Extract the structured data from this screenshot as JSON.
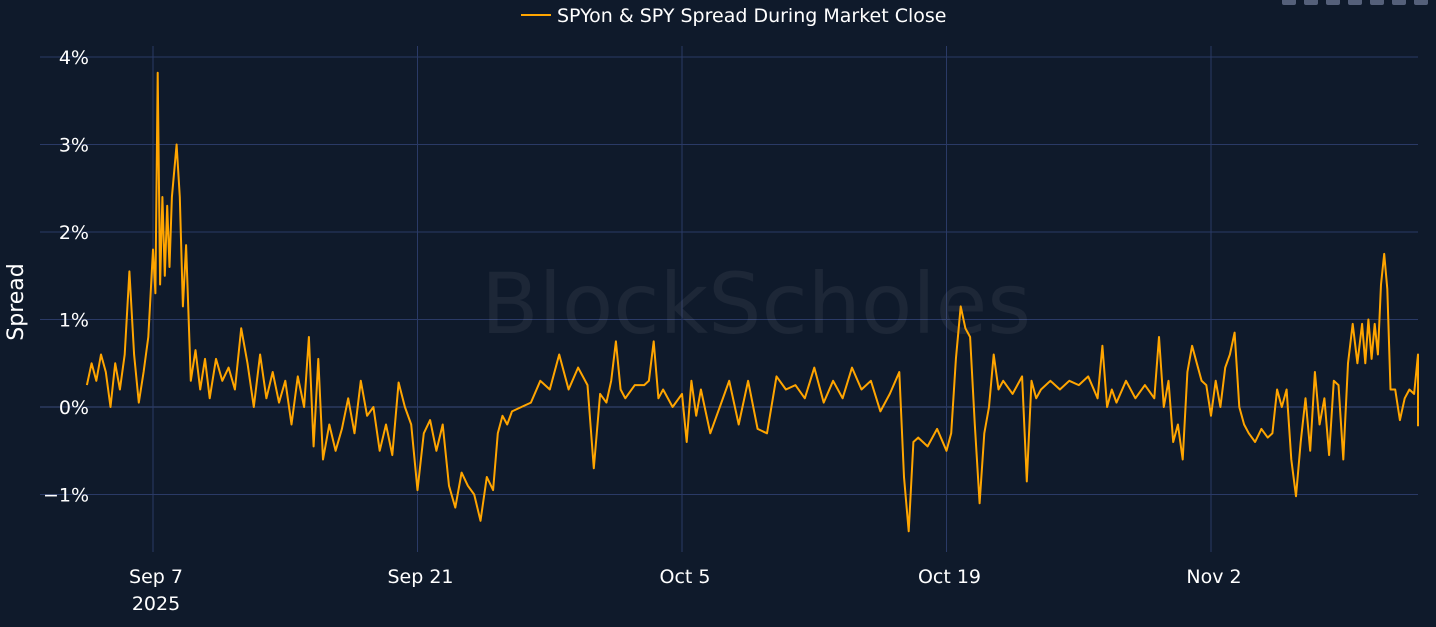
{
  "chart_data": {
    "type": "line",
    "title": "",
    "xlabel": "",
    "ylabel": "Spread",
    "ylim": [
      -1.75,
      4.1
    ],
    "xlim": [
      "2025-09-04",
      "2025-11-12"
    ],
    "y_ticks": [
      {
        "value": 4,
        "label": "4%"
      },
      {
        "value": 3,
        "label": "3%"
      },
      {
        "value": 2,
        "label": "2%"
      },
      {
        "value": 1,
        "label": "1%"
      },
      {
        "value": 0,
        "label": "0%"
      },
      {
        "value": -1,
        "label": "−1%"
      }
    ],
    "x_ticks": [
      {
        "value": "2025-09-07",
        "label": "Sep 7",
        "sublabel": "2025"
      },
      {
        "value": "2025-09-21",
        "label": "Sep 21",
        "sublabel": ""
      },
      {
        "value": "2025-10-05",
        "label": "Oct 5",
        "sublabel": ""
      },
      {
        "value": "2025-10-19",
        "label": "Oct 19",
        "sublabel": ""
      },
      {
        "value": "2025-11-02",
        "label": "Nov 2",
        "sublabel": ""
      }
    ],
    "grid": true,
    "legend": "top-center",
    "series": [
      {
        "name": "SPYon & SPY Spread During Market Close",
        "color": "#ffa500",
        "points": [
          [
            "2025-09-03 12:00",
            0.25
          ],
          [
            "2025-09-03 18:00",
            0.5
          ],
          [
            "2025-09-04 00:00",
            0.3
          ],
          [
            "2025-09-04 06:00",
            0.6
          ],
          [
            "2025-09-04 12:00",
            0.4
          ],
          [
            "2025-09-04 18:00",
            0.0
          ],
          [
            "2025-09-05 00:00",
            0.5
          ],
          [
            "2025-09-05 06:00",
            0.2
          ],
          [
            "2025-09-05 12:00",
            0.6
          ],
          [
            "2025-09-05 18:00",
            1.55
          ],
          [
            "2025-09-06 00:00",
            0.6
          ],
          [
            "2025-09-06 06:00",
            0.05
          ],
          [
            "2025-09-06 12:00",
            0.4
          ],
          [
            "2025-09-06 18:00",
            0.8
          ],
          [
            "2025-09-07 00:00",
            1.8
          ],
          [
            "2025-09-07 03:00",
            1.3
          ],
          [
            "2025-09-07 06:00",
            3.82
          ],
          [
            "2025-09-07 09:00",
            1.4
          ],
          [
            "2025-09-07 12:00",
            2.4
          ],
          [
            "2025-09-07 15:00",
            1.5
          ],
          [
            "2025-09-07 18:00",
            2.3
          ],
          [
            "2025-09-07 21:00",
            1.6
          ],
          [
            "2025-09-08 00:00",
            2.4
          ],
          [
            "2025-09-08 06:00",
            3.0
          ],
          [
            "2025-09-08 10:00",
            2.4
          ],
          [
            "2025-09-08 14:00",
            1.15
          ],
          [
            "2025-09-08 18:00",
            1.85
          ],
          [
            "2025-09-09 00:00",
            0.3
          ],
          [
            "2025-09-09 06:00",
            0.65
          ],
          [
            "2025-09-09 12:00",
            0.2
          ],
          [
            "2025-09-09 18:00",
            0.55
          ],
          [
            "2025-09-10 00:00",
            0.1
          ],
          [
            "2025-09-10 08:00",
            0.55
          ],
          [
            "2025-09-10 16:00",
            0.3
          ],
          [
            "2025-09-11 00:00",
            0.45
          ],
          [
            "2025-09-11 08:00",
            0.2
          ],
          [
            "2025-09-11 16:00",
            0.9
          ],
          [
            "2025-09-12 00:00",
            0.5
          ],
          [
            "2025-09-12 08:00",
            0.0
          ],
          [
            "2025-09-12 16:00",
            0.6
          ],
          [
            "2025-09-13 00:00",
            0.1
          ],
          [
            "2025-09-13 08:00",
            0.4
          ],
          [
            "2025-09-13 16:00",
            0.05
          ],
          [
            "2025-09-14 00:00",
            0.3
          ],
          [
            "2025-09-14 08:00",
            -0.2
          ],
          [
            "2025-09-14 16:00",
            0.35
          ],
          [
            "2025-09-15 00:00",
            0.0
          ],
          [
            "2025-09-15 06:00",
            0.8
          ],
          [
            "2025-09-15 12:00",
            -0.45
          ],
          [
            "2025-09-15 18:00",
            0.55
          ],
          [
            "2025-09-16 00:00",
            -0.6
          ],
          [
            "2025-09-16 08:00",
            -0.2
          ],
          [
            "2025-09-16 16:00",
            -0.5
          ],
          [
            "2025-09-17 00:00",
            -0.25
          ],
          [
            "2025-09-17 08:00",
            0.1
          ],
          [
            "2025-09-17 16:00",
            -0.3
          ],
          [
            "2025-09-18 00:00",
            0.3
          ],
          [
            "2025-09-18 08:00",
            -0.1
          ],
          [
            "2025-09-18 16:00",
            0.0
          ],
          [
            "2025-09-19 00:00",
            -0.5
          ],
          [
            "2025-09-19 08:00",
            -0.2
          ],
          [
            "2025-09-19 16:00",
            -0.55
          ],
          [
            "2025-09-20 00:00",
            0.28
          ],
          [
            "2025-09-20 08:00",
            0.0
          ],
          [
            "2025-09-20 16:00",
            -0.2
          ],
          [
            "2025-09-21 00:00",
            -0.95
          ],
          [
            "2025-09-21 08:00",
            -0.3
          ],
          [
            "2025-09-21 16:00",
            -0.15
          ],
          [
            "2025-09-22 00:00",
            -0.5
          ],
          [
            "2025-09-22 08:00",
            -0.2
          ],
          [
            "2025-09-22 16:00",
            -0.9
          ],
          [
            "2025-09-23 00:00",
            -1.15
          ],
          [
            "2025-09-23 08:00",
            -0.75
          ],
          [
            "2025-09-23 16:00",
            -0.9
          ],
          [
            "2025-09-24 00:00",
            -1.0
          ],
          [
            "2025-09-24 08:00",
            -1.3
          ],
          [
            "2025-09-24 16:00",
            -0.8
          ],
          [
            "2025-09-25 00:00",
            -0.95
          ],
          [
            "2025-09-25 06:00",
            -0.3
          ],
          [
            "2025-09-25 12:00",
            -0.1
          ],
          [
            "2025-09-25 18:00",
            -0.2
          ],
          [
            "2025-09-26 00:00",
            -0.05
          ],
          [
            "2025-09-26 12:00",
            0.0
          ],
          [
            "2025-09-27 00:00",
            0.05
          ],
          [
            "2025-09-27 12:00",
            0.3
          ],
          [
            "2025-09-28 00:00",
            0.2
          ],
          [
            "2025-09-28 12:00",
            0.6
          ],
          [
            "2025-09-29 00:00",
            0.2
          ],
          [
            "2025-09-29 12:00",
            0.45
          ],
          [
            "2025-09-30 00:00",
            0.25
          ],
          [
            "2025-09-30 08:00",
            -0.7
          ],
          [
            "2025-09-30 16:00",
            0.15
          ],
          [
            "2025-10-01 00:00",
            0.05
          ],
          [
            "2025-10-01 06:00",
            0.3
          ],
          [
            "2025-10-01 12:00",
            0.75
          ],
          [
            "2025-10-01 18:00",
            0.2
          ],
          [
            "2025-10-02 00:00",
            0.1
          ],
          [
            "2025-10-02 12:00",
            0.25
          ],
          [
            "2025-10-03 00:00",
            0.25
          ],
          [
            "2025-10-03 06:00",
            0.3
          ],
          [
            "2025-10-03 12:00",
            0.75
          ],
          [
            "2025-10-03 18:00",
            0.1
          ],
          [
            "2025-10-04 00:00",
            0.2
          ],
          [
            "2025-10-04 12:00",
            0.0
          ],
          [
            "2025-10-05 00:00",
            0.15
          ],
          [
            "2025-10-05 06:00",
            -0.4
          ],
          [
            "2025-10-05 12:00",
            0.3
          ],
          [
            "2025-10-05 18:00",
            -0.1
          ],
          [
            "2025-10-06 00:00",
            0.2
          ],
          [
            "2025-10-06 12:00",
            -0.3
          ],
          [
            "2025-10-07 00:00",
            0.0
          ],
          [
            "2025-10-07 12:00",
            0.3
          ],
          [
            "2025-10-08 00:00",
            -0.2
          ],
          [
            "2025-10-08 12:00",
            0.3
          ],
          [
            "2025-10-09 00:00",
            -0.25
          ],
          [
            "2025-10-09 12:00",
            -0.3
          ],
          [
            "2025-10-10 00:00",
            0.35
          ],
          [
            "2025-10-10 12:00",
            0.2
          ],
          [
            "2025-10-11 00:00",
            0.25
          ],
          [
            "2025-10-11 12:00",
            0.1
          ],
          [
            "2025-10-12 00:00",
            0.45
          ],
          [
            "2025-10-12 12:00",
            0.05
          ],
          [
            "2025-10-13 00:00",
            0.3
          ],
          [
            "2025-10-13 12:00",
            0.1
          ],
          [
            "2025-10-14 00:00",
            0.45
          ],
          [
            "2025-10-14 12:00",
            0.2
          ],
          [
            "2025-10-15 00:00",
            0.3
          ],
          [
            "2025-10-15 12:00",
            -0.05
          ],
          [
            "2025-10-16 00:00",
            0.15
          ],
          [
            "2025-10-16 12:00",
            0.4
          ],
          [
            "2025-10-16 18:00",
            -0.8
          ],
          [
            "2025-10-17 00:00",
            -1.42
          ],
          [
            "2025-10-17 06:00",
            -0.4
          ],
          [
            "2025-10-17 12:00",
            -0.35
          ],
          [
            "2025-10-18 00:00",
            -0.45
          ],
          [
            "2025-10-18 12:00",
            -0.25
          ],
          [
            "2025-10-19 00:00",
            -0.5
          ],
          [
            "2025-10-19 06:00",
            -0.3
          ],
          [
            "2025-10-19 12:00",
            0.55
          ],
          [
            "2025-10-19 18:00",
            1.15
          ],
          [
            "2025-10-20 00:00",
            0.9
          ],
          [
            "2025-10-20 06:00",
            0.8
          ],
          [
            "2025-10-20 12:00",
            -0.2
          ],
          [
            "2025-10-20 18:00",
            -1.1
          ],
          [
            "2025-10-21 00:00",
            -0.3
          ],
          [
            "2025-10-21 06:00",
            0.0
          ],
          [
            "2025-10-21 12:00",
            0.6
          ],
          [
            "2025-10-21 18:00",
            0.2
          ],
          [
            "2025-10-22 00:00",
            0.3
          ],
          [
            "2025-10-22 12:00",
            0.15
          ],
          [
            "2025-10-23 00:00",
            0.35
          ],
          [
            "2025-10-23 06:00",
            -0.85
          ],
          [
            "2025-10-23 12:00",
            0.3
          ],
          [
            "2025-10-23 18:00",
            0.1
          ],
          [
            "2025-10-24 00:00",
            0.2
          ],
          [
            "2025-10-24 12:00",
            0.3
          ],
          [
            "2025-10-25 00:00",
            0.2
          ],
          [
            "2025-10-25 12:00",
            0.3
          ],
          [
            "2025-10-26 00:00",
            0.25
          ],
          [
            "2025-10-26 12:00",
            0.35
          ],
          [
            "2025-10-27 00:00",
            0.1
          ],
          [
            "2025-10-27 06:00",
            0.7
          ],
          [
            "2025-10-27 12:00",
            0.0
          ],
          [
            "2025-10-27 18:00",
            0.2
          ],
          [
            "2025-10-28 00:00",
            0.05
          ],
          [
            "2025-10-28 12:00",
            0.3
          ],
          [
            "2025-10-29 00:00",
            0.1
          ],
          [
            "2025-10-29 12:00",
            0.25
          ],
          [
            "2025-10-30 00:00",
            0.1
          ],
          [
            "2025-10-30 06:00",
            0.8
          ],
          [
            "2025-10-30 12:00",
            0.0
          ],
          [
            "2025-10-30 18:00",
            0.3
          ],
          [
            "2025-10-31 00:00",
            -0.4
          ],
          [
            "2025-10-31 06:00",
            -0.2
          ],
          [
            "2025-10-31 12:00",
            -0.6
          ],
          [
            "2025-10-31 18:00",
            0.4
          ],
          [
            "2025-11-01 00:00",
            0.7
          ],
          [
            "2025-11-01 06:00",
            0.5
          ],
          [
            "2025-11-01 12:00",
            0.3
          ],
          [
            "2025-11-01 18:00",
            0.25
          ],
          [
            "2025-11-02 00:00",
            -0.1
          ],
          [
            "2025-11-02 06:00",
            0.3
          ],
          [
            "2025-11-02 12:00",
            0.0
          ],
          [
            "2025-11-02 18:00",
            0.45
          ],
          [
            "2025-11-03 00:00",
            0.6
          ],
          [
            "2025-11-03 06:00",
            0.85
          ],
          [
            "2025-11-03 12:00",
            0.0
          ],
          [
            "2025-11-03 18:00",
            -0.2
          ],
          [
            "2025-11-04 00:00",
            -0.3
          ],
          [
            "2025-11-04 08:00",
            -0.4
          ],
          [
            "2025-11-04 16:00",
            -0.25
          ],
          [
            "2025-11-05 00:00",
            -0.35
          ],
          [
            "2025-11-05 06:00",
            -0.3
          ],
          [
            "2025-11-05 12:00",
            0.2
          ],
          [
            "2025-11-05 18:00",
            0.0
          ],
          [
            "2025-11-06 00:00",
            0.2
          ],
          [
            "2025-11-06 06:00",
            -0.6
          ],
          [
            "2025-11-06 12:00",
            -1.02
          ],
          [
            "2025-11-06 18:00",
            -0.4
          ],
          [
            "2025-11-07 00:00",
            0.1
          ],
          [
            "2025-11-07 06:00",
            -0.5
          ],
          [
            "2025-11-07 12:00",
            0.4
          ],
          [
            "2025-11-07 18:00",
            -0.2
          ],
          [
            "2025-11-08 00:00",
            0.1
          ],
          [
            "2025-11-08 06:00",
            -0.55
          ],
          [
            "2025-11-08 12:00",
            0.3
          ],
          [
            "2025-11-08 18:00",
            0.25
          ],
          [
            "2025-11-09 00:00",
            -0.6
          ],
          [
            "2025-11-09 06:00",
            0.5
          ],
          [
            "2025-11-09 12:00",
            0.95
          ],
          [
            "2025-11-09 18:00",
            0.5
          ],
          [
            "2025-11-10 00:00",
            0.95
          ],
          [
            "2025-11-10 04:00",
            0.5
          ],
          [
            "2025-11-10 08:00",
            1.0
          ],
          [
            "2025-11-10 12:00",
            0.55
          ],
          [
            "2025-11-10 16:00",
            0.95
          ],
          [
            "2025-11-10 20:00",
            0.6
          ],
          [
            "2025-11-11 00:00",
            1.4
          ],
          [
            "2025-11-11 04:00",
            1.75
          ],
          [
            "2025-11-11 08:00",
            1.35
          ],
          [
            "2025-11-11 12:00",
            0.2
          ],
          [
            "2025-11-11 18:00",
            0.2
          ],
          [
            "2025-11-12 00:00",
            -0.15
          ],
          [
            "2025-11-12 06:00",
            0.1
          ],
          [
            "2025-11-12 12:00",
            0.2
          ],
          [
            "2025-11-12 18:00",
            0.15
          ],
          [
            "2025-11-13 00:00",
            0.6
          ],
          [
            "2025-11-13 06:00",
            0.3
          ],
          [
            "2025-11-13 12:00",
            0.0
          ],
          [
            "2025-11-13 18:00",
            -0.22
          ]
        ]
      }
    ]
  },
  "watermark": "BlockScholes",
  "legend": {
    "label": "SPYon & SPY Spread During Market Close"
  }
}
